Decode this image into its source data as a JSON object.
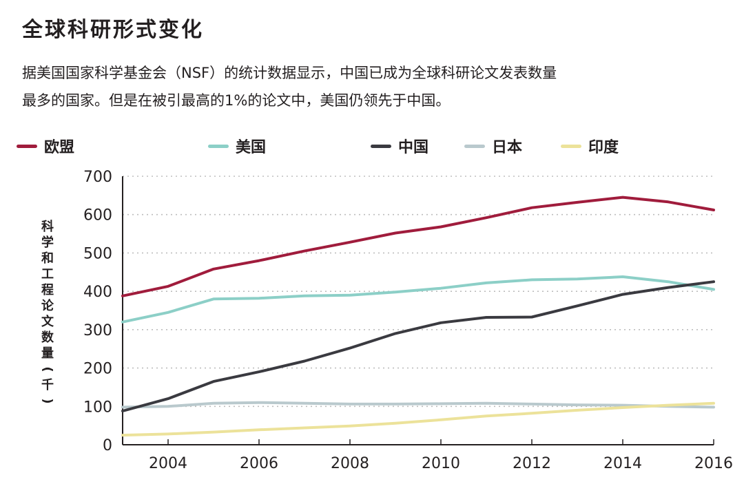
{
  "title": "全球科研形式变化",
  "description": [
    "据美国国家科学基金会（NSF）的统计数据显示，中国已成为全球科研论文发表数量",
    "最多的国家。但是在被引最高的1%的论文中，美国仍领先于中国。"
  ],
  "legend": [
    {
      "name": "欧盟",
      "color": "#a01c3c"
    },
    {
      "name": "美国",
      "color": "#8ccfc7"
    },
    {
      "name": "中国",
      "color": "#3a3a40"
    },
    {
      "name": "日本",
      "color": "#b9c9cd"
    },
    {
      "name": "印度",
      "color": "#ece29a"
    }
  ],
  "chart_data": {
    "type": "line",
    "ylabel": "科学和工程论文数量（千）",
    "xlabel": "",
    "xlim": [
      2003,
      2016
    ],
    "ylim": [
      0,
      700
    ],
    "yticks": [
      0,
      100,
      200,
      300,
      400,
      500,
      600,
      700
    ],
    "xticks": [
      2004,
      2006,
      2008,
      2010,
      2012,
      2014,
      2016
    ],
    "grid": "horizontal dotted",
    "legend_position": "top",
    "x": [
      2003,
      2004,
      2005,
      2006,
      2007,
      2008,
      2009,
      2010,
      2011,
      2012,
      2013,
      2014,
      2015,
      2016
    ],
    "series": [
      {
        "name": "欧盟",
        "color": "#a01c3c",
        "values": [
          388,
          413,
          458,
          480,
          505,
          528,
          552,
          568,
          592,
          618,
          632,
          645,
          633,
          612
        ]
      },
      {
        "name": "美国",
        "color": "#8ccfc7",
        "values": [
          320,
          345,
          380,
          382,
          388,
          390,
          398,
          408,
          422,
          430,
          432,
          438,
          425,
          405
        ]
      },
      {
        "name": "中国",
        "color": "#3a3a40",
        "values": [
          88,
          120,
          165,
          190,
          218,
          252,
          290,
          318,
          332,
          333,
          362,
          392,
          410,
          425
        ]
      },
      {
        "name": "日本",
        "color": "#b9c9cd",
        "values": [
          98,
          100,
          108,
          110,
          108,
          106,
          106,
          107,
          108,
          106,
          104,
          103,
          100,
          98
        ]
      },
      {
        "name": "印度",
        "color": "#ece29a",
        "values": [
          25,
          28,
          33,
          39,
          44,
          49,
          56,
          65,
          75,
          82,
          90,
          97,
          103,
          108
        ]
      }
    ]
  }
}
